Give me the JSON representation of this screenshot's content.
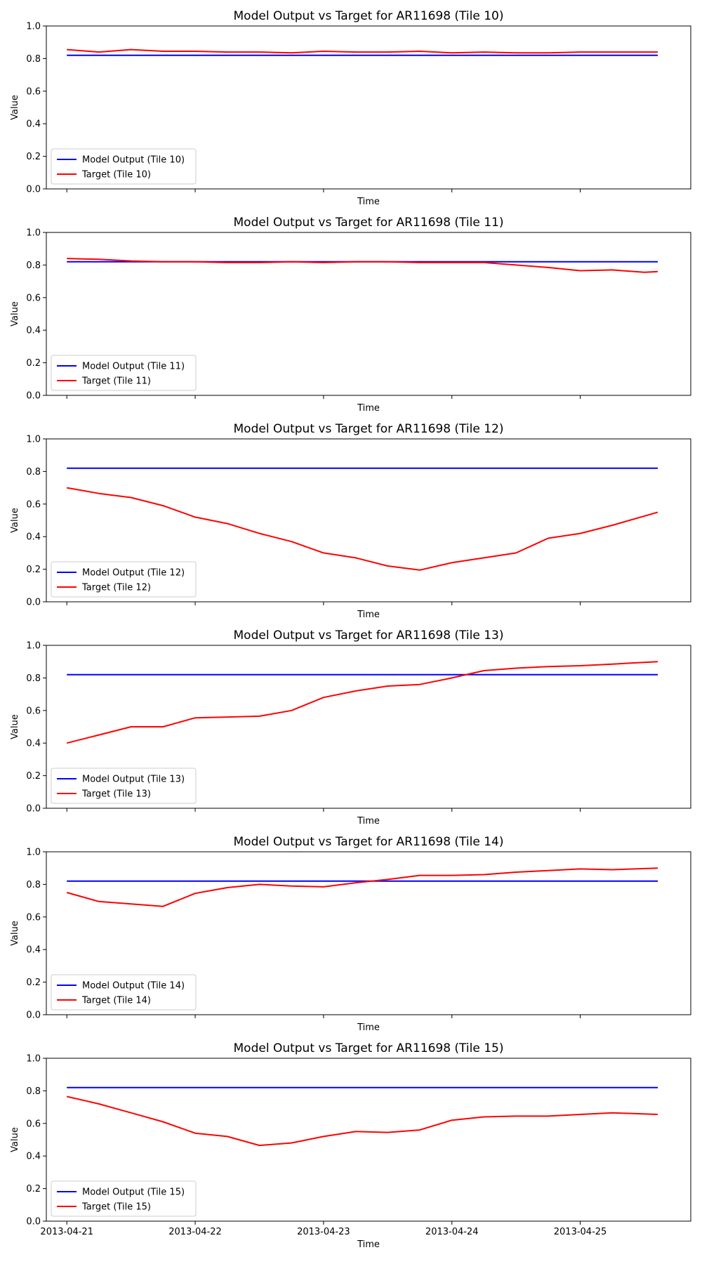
{
  "chart_data": [
    {
      "type": "line",
      "title": "Model Output vs Target for AR11698 (Tile 10)",
      "xlabel": "Time",
      "ylabel": "Value",
      "ylim": [
        0,
        1
      ],
      "yticks": [
        "0.0",
        "0.2",
        "0.4",
        "0.6",
        "0.8",
        "1.0"
      ],
      "xticks": [
        "2013-04-21",
        "2013-04-22",
        "2013-04-23",
        "2013-04-24",
        "2013-04-25"
      ],
      "show_xtick_labels": false,
      "xlim": [
        "2013-04-20T20:10",
        "2013-04-25T20:40"
      ],
      "legend": "lower-left",
      "series": [
        {
          "name": "Model Output (Tile 10)",
          "color": "#0000ff",
          "points": [
            [
              "2013-04-21T00:00",
              0.82
            ],
            [
              "2013-04-25T14:30",
              0.82
            ]
          ]
        },
        {
          "name": "Target (Tile 10)",
          "color": "#ff0000",
          "points": [
            [
              "2013-04-21T00:00",
              0.855
            ],
            [
              "2013-04-21T06:00",
              0.84
            ],
            [
              "2013-04-21T12:00",
              0.855
            ],
            [
              "2013-04-21T18:00",
              0.845
            ],
            [
              "2013-04-22T00:00",
              0.845
            ],
            [
              "2013-04-22T06:00",
              0.84
            ],
            [
              "2013-04-22T12:00",
              0.84
            ],
            [
              "2013-04-22T18:00",
              0.835
            ],
            [
              "2013-04-23T00:00",
              0.845
            ],
            [
              "2013-04-23T06:00",
              0.84
            ],
            [
              "2013-04-23T12:00",
              0.84
            ],
            [
              "2013-04-23T18:00",
              0.845
            ],
            [
              "2013-04-24T00:00",
              0.835
            ],
            [
              "2013-04-24T06:00",
              0.84
            ],
            [
              "2013-04-24T12:00",
              0.835
            ],
            [
              "2013-04-24T18:00",
              0.835
            ],
            [
              "2013-04-25T00:00",
              0.84
            ],
            [
              "2013-04-25T06:00",
              0.84
            ],
            [
              "2013-04-25T14:30",
              0.84
            ]
          ]
        }
      ]
    },
    {
      "type": "line",
      "title": "Model Output vs Target for AR11698 (Tile 11)",
      "xlabel": "Time",
      "ylabel": "Value",
      "ylim": [
        0,
        1
      ],
      "yticks": [
        "0.0",
        "0.2",
        "0.4",
        "0.6",
        "0.8",
        "1.0"
      ],
      "xticks": [
        "2013-04-21",
        "2013-04-22",
        "2013-04-23",
        "2013-04-24",
        "2013-04-25"
      ],
      "show_xtick_labels": false,
      "xlim": [
        "2013-04-20T20:10",
        "2013-04-25T20:40"
      ],
      "legend": "lower-left",
      "series": [
        {
          "name": "Model Output (Tile 11)",
          "color": "#0000ff",
          "points": [
            [
              "2013-04-21T00:00",
              0.82
            ],
            [
              "2013-04-25T14:30",
              0.82
            ]
          ]
        },
        {
          "name": "Target (Tile 11)",
          "color": "#ff0000",
          "points": [
            [
              "2013-04-21T00:00",
              0.84
            ],
            [
              "2013-04-21T06:00",
              0.835
            ],
            [
              "2013-04-21T12:00",
              0.825
            ],
            [
              "2013-04-21T18:00",
              0.82
            ],
            [
              "2013-04-22T00:00",
              0.82
            ],
            [
              "2013-04-22T06:00",
              0.815
            ],
            [
              "2013-04-22T12:00",
              0.815
            ],
            [
              "2013-04-22T18:00",
              0.82
            ],
            [
              "2013-04-23T00:00",
              0.815
            ],
            [
              "2013-04-23T06:00",
              0.82
            ],
            [
              "2013-04-23T12:00",
              0.82
            ],
            [
              "2013-04-23T18:00",
              0.815
            ],
            [
              "2013-04-24T00:00",
              0.815
            ],
            [
              "2013-04-24T06:00",
              0.815
            ],
            [
              "2013-04-24T12:00",
              0.8
            ],
            [
              "2013-04-24T18:00",
              0.785
            ],
            [
              "2013-04-25T00:00",
              0.765
            ],
            [
              "2013-04-25T06:00",
              0.77
            ],
            [
              "2013-04-25T12:00",
              0.755
            ],
            [
              "2013-04-25T14:30",
              0.76
            ]
          ]
        }
      ]
    },
    {
      "type": "line",
      "title": "Model Output vs Target for AR11698 (Tile 12)",
      "xlabel": "Time",
      "ylabel": "Value",
      "ylim": [
        0,
        1
      ],
      "yticks": [
        "0.0",
        "0.2",
        "0.4",
        "0.6",
        "0.8",
        "1.0"
      ],
      "xticks": [
        "2013-04-21",
        "2013-04-22",
        "2013-04-23",
        "2013-04-24",
        "2013-04-25"
      ],
      "show_xtick_labels": false,
      "xlim": [
        "2013-04-20T20:10",
        "2013-04-25T20:40"
      ],
      "legend": "lower-left",
      "series": [
        {
          "name": "Model Output (Tile 12)",
          "color": "#0000ff",
          "points": [
            [
              "2013-04-21T00:00",
              0.82
            ],
            [
              "2013-04-25T14:30",
              0.82
            ]
          ]
        },
        {
          "name": "Target (Tile 12)",
          "color": "#ff0000",
          "points": [
            [
              "2013-04-21T00:00",
              0.7
            ],
            [
              "2013-04-21T06:00",
              0.665
            ],
            [
              "2013-04-21T12:00",
              0.64
            ],
            [
              "2013-04-21T18:00",
              0.59
            ],
            [
              "2013-04-22T00:00",
              0.52
            ],
            [
              "2013-04-22T06:00",
              0.48
            ],
            [
              "2013-04-22T12:00",
              0.42
            ],
            [
              "2013-04-22T18:00",
              0.37
            ],
            [
              "2013-04-23T00:00",
              0.3
            ],
            [
              "2013-04-23T06:00",
              0.27
            ],
            [
              "2013-04-23T12:00",
              0.22
            ],
            [
              "2013-04-23T18:00",
              0.195
            ],
            [
              "2013-04-24T00:00",
              0.24
            ],
            [
              "2013-04-24T06:00",
              0.27
            ],
            [
              "2013-04-24T12:00",
              0.3
            ],
            [
              "2013-04-24T18:00",
              0.39
            ],
            [
              "2013-04-25T00:00",
              0.42
            ],
            [
              "2013-04-25T06:00",
              0.47
            ],
            [
              "2013-04-25T14:30",
              0.55
            ]
          ]
        }
      ]
    },
    {
      "type": "line",
      "title": "Model Output vs Target for AR11698 (Tile 13)",
      "xlabel": "Time",
      "ylabel": "Value",
      "ylim": [
        0,
        1
      ],
      "yticks": [
        "0.0",
        "0.2",
        "0.4",
        "0.6",
        "0.8",
        "1.0"
      ],
      "xticks": [
        "2013-04-21",
        "2013-04-22",
        "2013-04-23",
        "2013-04-24",
        "2013-04-25"
      ],
      "show_xtick_labels": false,
      "xlim": [
        "2013-04-20T20:10",
        "2013-04-25T20:40"
      ],
      "legend": "lower-left",
      "series": [
        {
          "name": "Model Output (Tile 13)",
          "color": "#0000ff",
          "points": [
            [
              "2013-04-21T00:00",
              0.82
            ],
            [
              "2013-04-25T14:30",
              0.82
            ]
          ]
        },
        {
          "name": "Target (Tile 13)",
          "color": "#ff0000",
          "points": [
            [
              "2013-04-21T00:00",
              0.4
            ],
            [
              "2013-04-21T06:00",
              0.45
            ],
            [
              "2013-04-21T12:00",
              0.5
            ],
            [
              "2013-04-21T18:00",
              0.5
            ],
            [
              "2013-04-22T00:00",
              0.555
            ],
            [
              "2013-04-22T06:00",
              0.56
            ],
            [
              "2013-04-22T12:00",
              0.565
            ],
            [
              "2013-04-22T18:00",
              0.6
            ],
            [
              "2013-04-23T00:00",
              0.68
            ],
            [
              "2013-04-23T06:00",
              0.72
            ],
            [
              "2013-04-23T12:00",
              0.75
            ],
            [
              "2013-04-23T18:00",
              0.76
            ],
            [
              "2013-04-24T00:00",
              0.8
            ],
            [
              "2013-04-24T06:00",
              0.845
            ],
            [
              "2013-04-24T12:00",
              0.86
            ],
            [
              "2013-04-24T18:00",
              0.87
            ],
            [
              "2013-04-25T00:00",
              0.875
            ],
            [
              "2013-04-25T06:00",
              0.885
            ],
            [
              "2013-04-25T14:30",
              0.9
            ]
          ]
        }
      ]
    },
    {
      "type": "line",
      "title": "Model Output vs Target for AR11698 (Tile 14)",
      "xlabel": "Time",
      "ylabel": "Value",
      "ylim": [
        0,
        1
      ],
      "yticks": [
        "0.0",
        "0.2",
        "0.4",
        "0.6",
        "0.8",
        "1.0"
      ],
      "xticks": [
        "2013-04-21",
        "2013-04-22",
        "2013-04-23",
        "2013-04-24",
        "2013-04-25"
      ],
      "show_xtick_labels": false,
      "xlim": [
        "2013-04-20T20:10",
        "2013-04-25T20:40"
      ],
      "legend": "lower-left",
      "series": [
        {
          "name": "Model Output (Tile 14)",
          "color": "#0000ff",
          "points": [
            [
              "2013-04-21T00:00",
              0.82
            ],
            [
              "2013-04-25T14:30",
              0.82
            ]
          ]
        },
        {
          "name": "Target (Tile 14)",
          "color": "#ff0000",
          "points": [
            [
              "2013-04-21T00:00",
              0.75
            ],
            [
              "2013-04-21T06:00",
              0.695
            ],
            [
              "2013-04-21T12:00",
              0.68
            ],
            [
              "2013-04-21T18:00",
              0.665
            ],
            [
              "2013-04-22T00:00",
              0.745
            ],
            [
              "2013-04-22T06:00",
              0.78
            ],
            [
              "2013-04-22T12:00",
              0.8
            ],
            [
              "2013-04-22T18:00",
              0.79
            ],
            [
              "2013-04-23T00:00",
              0.785
            ],
            [
              "2013-04-23T06:00",
              0.81
            ],
            [
              "2013-04-23T12:00",
              0.83
            ],
            [
              "2013-04-23T18:00",
              0.855
            ],
            [
              "2013-04-24T00:00",
              0.855
            ],
            [
              "2013-04-24T06:00",
              0.86
            ],
            [
              "2013-04-24T12:00",
              0.875
            ],
            [
              "2013-04-24T18:00",
              0.885
            ],
            [
              "2013-04-25T00:00",
              0.895
            ],
            [
              "2013-04-25T06:00",
              0.89
            ],
            [
              "2013-04-25T14:30",
              0.9
            ]
          ]
        }
      ]
    },
    {
      "type": "line",
      "title": "Model Output vs Target for AR11698 (Tile 15)",
      "xlabel": "Time",
      "ylabel": "Value",
      "ylim": [
        0,
        1
      ],
      "yticks": [
        "0.0",
        "0.2",
        "0.4",
        "0.6",
        "0.8",
        "1.0"
      ],
      "xticks": [
        "2013-04-21",
        "2013-04-22",
        "2013-04-23",
        "2013-04-24",
        "2013-04-25"
      ],
      "show_xtick_labels": true,
      "xlim": [
        "2013-04-20T20:10",
        "2013-04-25T20:40"
      ],
      "legend": "lower-left",
      "series": [
        {
          "name": "Model Output (Tile 15)",
          "color": "#0000ff",
          "points": [
            [
              "2013-04-21T00:00",
              0.82
            ],
            [
              "2013-04-25T14:30",
              0.82
            ]
          ]
        },
        {
          "name": "Target (Tile 15)",
          "color": "#ff0000",
          "points": [
            [
              "2013-04-21T00:00",
              0.765
            ],
            [
              "2013-04-21T06:00",
              0.72
            ],
            [
              "2013-04-21T12:00",
              0.665
            ],
            [
              "2013-04-21T18:00",
              0.61
            ],
            [
              "2013-04-22T00:00",
              0.54
            ],
            [
              "2013-04-22T06:00",
              0.52
            ],
            [
              "2013-04-22T12:00",
              0.465
            ],
            [
              "2013-04-22T18:00",
              0.48
            ],
            [
              "2013-04-23T00:00",
              0.52
            ],
            [
              "2013-04-23T06:00",
              0.55
            ],
            [
              "2013-04-23T12:00",
              0.545
            ],
            [
              "2013-04-23T18:00",
              0.56
            ],
            [
              "2013-04-24T00:00",
              0.62
            ],
            [
              "2013-04-24T06:00",
              0.64
            ],
            [
              "2013-04-24T12:00",
              0.645
            ],
            [
              "2013-04-24T18:00",
              0.645
            ],
            [
              "2013-04-25T00:00",
              0.655
            ],
            [
              "2013-04-25T06:00",
              0.665
            ],
            [
              "2013-04-25T14:30",
              0.655
            ]
          ]
        }
      ]
    }
  ]
}
